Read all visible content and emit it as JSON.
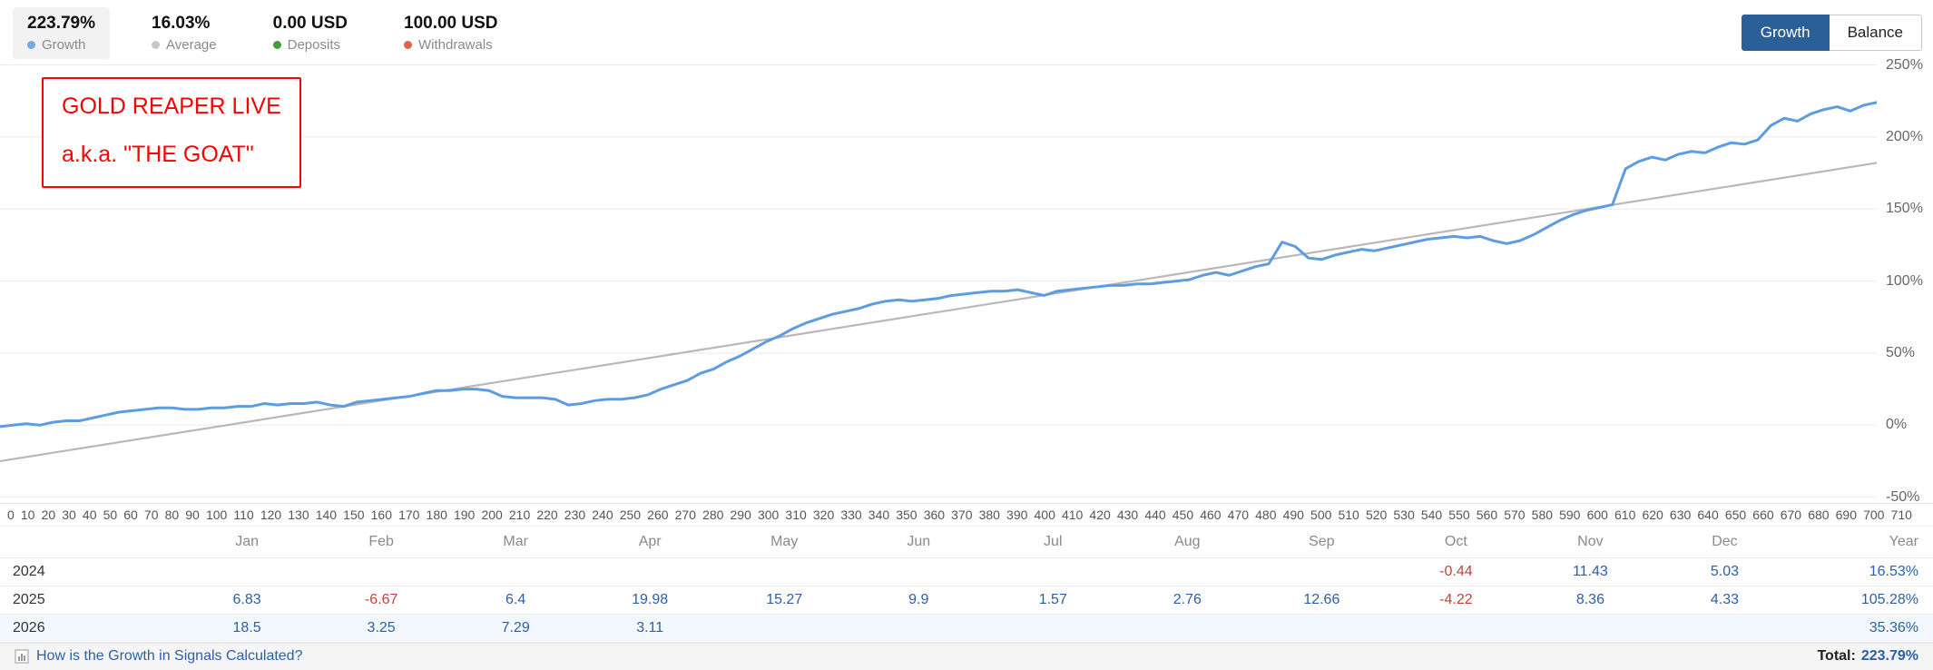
{
  "header": {
    "stats": [
      {
        "value": "223.79%",
        "label": "Growth",
        "color": "#76abe4",
        "highlight": true
      },
      {
        "value": "16.03%",
        "label": "Average",
        "color": "#c6c6c6",
        "highlight": false
      },
      {
        "value": "0.00 USD",
        "label": "Deposits",
        "color": "#3c9e3c",
        "highlight": false
      },
      {
        "value": "100.00 USD",
        "label": "Withdrawals",
        "color": "#e4604a",
        "highlight": false
      }
    ],
    "toggle": {
      "growth": "Growth",
      "balance": "Balance",
      "active": "Growth"
    }
  },
  "annotation": {
    "line1": "GOLD REAPER LIVE",
    "line2": "a.k.a. \"THE GOAT\""
  },
  "chart_data": {
    "type": "line",
    "title": "",
    "xlim": [
      0,
      710
    ],
    "ylim": [
      -50,
      250
    ],
    "grid": true,
    "y_tick_suffix": "%",
    "y_ticks": [
      250,
      200,
      150,
      100,
      50,
      0,
      -50
    ],
    "x_ticks": [
      0,
      10,
      20,
      30,
      40,
      50,
      60,
      70,
      80,
      90,
      100,
      110,
      120,
      130,
      140,
      150,
      160,
      170,
      180,
      190,
      200,
      210,
      220,
      230,
      240,
      250,
      260,
      270,
      280,
      290,
      300,
      310,
      320,
      330,
      340,
      350,
      360,
      370,
      380,
      390,
      400,
      410,
      420,
      430,
      440,
      450,
      460,
      470,
      480,
      490,
      500,
      510,
      520,
      530,
      540,
      550,
      560,
      570,
      580,
      590,
      600,
      610,
      620,
      630,
      640,
      650,
      660,
      670,
      680,
      690,
      700,
      710
    ],
    "series": [
      {
        "name": "Growth",
        "color": "#5d9cdf",
        "width": 3,
        "x_step": 5,
        "y": [
          -1,
          0,
          1,
          0,
          2,
          3,
          3,
          5,
          7,
          9,
          10,
          11,
          12,
          12,
          11,
          11,
          12,
          12,
          13,
          13,
          15,
          14,
          15,
          15,
          16,
          14,
          13,
          16,
          17,
          18,
          19,
          20,
          22,
          24,
          24,
          25,
          25,
          24,
          20,
          19,
          19,
          19,
          18,
          14,
          15,
          17,
          18,
          18,
          19,
          21,
          25,
          28,
          31,
          36,
          39,
          44,
          48,
          53,
          58,
          62,
          67,
          71,
          74,
          77,
          79,
          81,
          84,
          86,
          87,
          86,
          87,
          88,
          90,
          91,
          92,
          93,
          93,
          94,
          92,
          90,
          93,
          94,
          95,
          96,
          97,
          97,
          98,
          98,
          99,
          100,
          101,
          104,
          106,
          104,
          107,
          110,
          112,
          127,
          124,
          116,
          115,
          118,
          120,
          122,
          121,
          123,
          125,
          127,
          129,
          130,
          131,
          130,
          131,
          128,
          126,
          128,
          132,
          137,
          142,
          146,
          149,
          151,
          153,
          178,
          183,
          186,
          184,
          188,
          190,
          189,
          193,
          196,
          195,
          198,
          208,
          213,
          211,
          216,
          219,
          221,
          218,
          222,
          224
        ]
      },
      {
        "name": "Average",
        "color": "#b8b8b8",
        "width": 2.2,
        "x": [
          0,
          710
        ],
        "y": [
          -25,
          182
        ]
      }
    ]
  },
  "table": {
    "months": [
      "Jan",
      "Feb",
      "Mar",
      "Apr",
      "May",
      "Jun",
      "Jul",
      "Aug",
      "Sep",
      "Oct",
      "Nov",
      "Dec"
    ],
    "year_header": "Year",
    "rows": [
      {
        "year": "2024",
        "highlight": false,
        "values": [
          "",
          "",
          "",
          "",
          "",
          "",
          "",
          "",
          "",
          "-0.44",
          "11.43",
          "5.03"
        ],
        "total": "16.53%"
      },
      {
        "year": "2025",
        "highlight": false,
        "values": [
          "6.83",
          "-6.67",
          "6.4",
          "19.98",
          "15.27",
          "9.9",
          "1.57",
          "2.76",
          "12.66",
          "-4.22",
          "8.36",
          "4.33"
        ],
        "total": "105.28%"
      },
      {
        "year": "2026",
        "highlight": true,
        "values": [
          "18.5",
          "3.25",
          "7.29",
          "3.11",
          "",
          "",
          "",
          "",
          "",
          "",
          "",
          ""
        ],
        "total": "35.36%"
      }
    ]
  },
  "footer": {
    "help_text": "How is the Growth in Signals Calculated?",
    "total_label": "Total:",
    "total_value": "223.79%"
  }
}
